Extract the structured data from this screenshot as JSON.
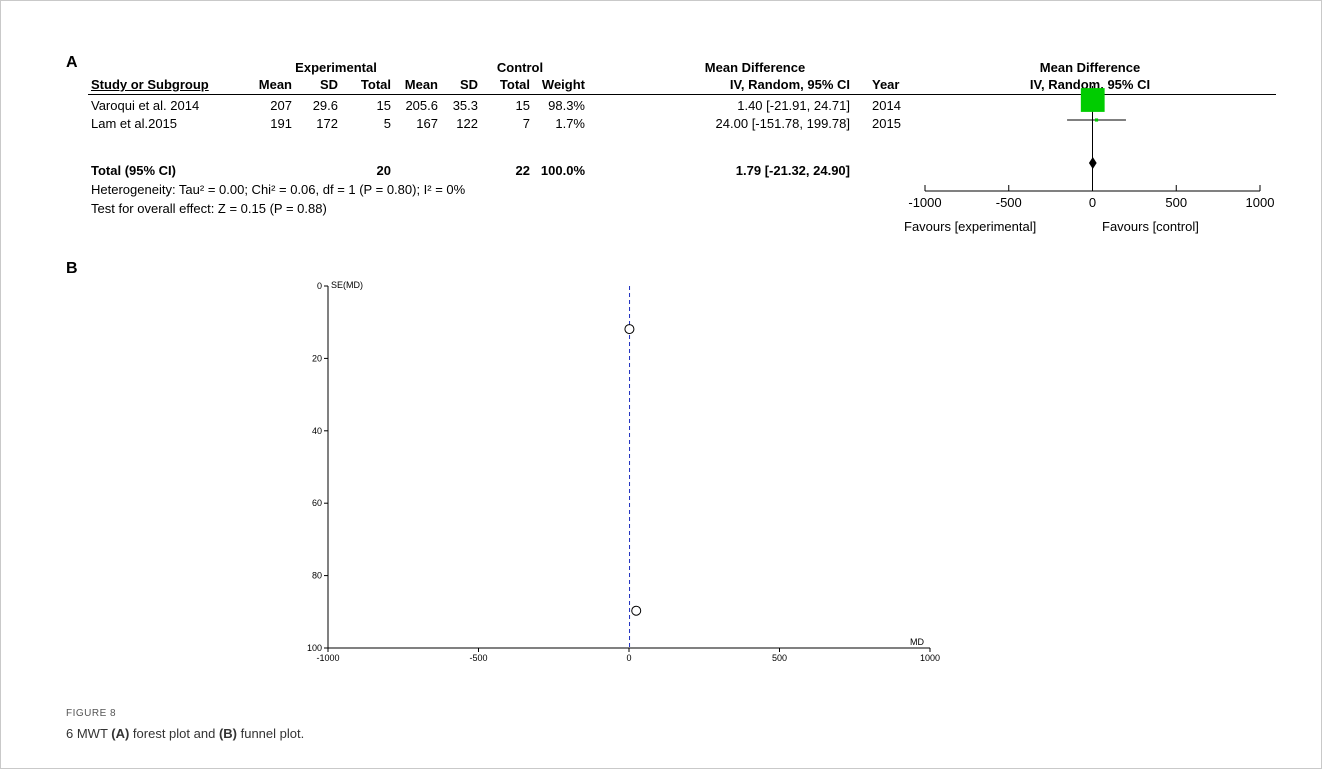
{
  "panel_a": {
    "letter": "A",
    "group_headers": {
      "experimental": "Experimental",
      "control": "Control",
      "md_left": "Mean Difference",
      "md_right": "Mean Difference"
    },
    "columns": {
      "study": "Study or Subgroup",
      "mean1": "Mean",
      "sd1": "SD",
      "total1": "Total",
      "mean2": "Mean",
      "sd2": "SD",
      "total2": "Total",
      "weight": "Weight",
      "ci": "IV, Random, 95% CI",
      "year": "Year",
      "ci_right": "IV, Random, 95% CI"
    },
    "rows": [
      {
        "study": "Varoqui et al. 2014",
        "mean1": "207",
        "sd1": "29.6",
        "total1": "15",
        "mean2": "205.6",
        "sd2": "35.3",
        "total2": "15",
        "weight": "98.3%",
        "ci": "1.40 [-21.91, 24.71]",
        "year": "2014"
      },
      {
        "study": "Lam et al.2015",
        "mean1": "191",
        "sd1": "172",
        "total1": "5",
        "mean2": "167",
        "sd2": "122",
        "total2": "7",
        "weight": "1.7%",
        "ci": "24.00 [-151.78, 199.78]",
        "year": "2015"
      }
    ],
    "total_row": {
      "label": "Total (95% CI)",
      "total1": "20",
      "total2": "22",
      "weight": "100.0%",
      "ci": "1.79 [-21.32, 24.90]"
    },
    "heterogeneity": "Heterogeneity: Tau² = 0.00; Chi² = 0.06, df = 1 (P = 0.80); I² = 0%",
    "overall_effect": "Test for overall effect: Z = 0.15 (P = 0.88)",
    "favours_left": "Favours [experimental]",
    "favours_right": "Favours [control]"
  },
  "panel_b": {
    "letter": "B"
  },
  "caption": {
    "label": "FIGURE 8",
    "text_prefix": "6 MWT ",
    "a_marker": "(A)",
    "text_middle": " forest plot and ",
    "b_marker": "(B)",
    "text_suffix": " funnel plot."
  },
  "chart_data": [
    {
      "type": "forest",
      "xlim": [
        -1000,
        1000
      ],
      "xticks": [
        -1000,
        -500,
        0,
        500,
        1000
      ],
      "tick_labels": [
        "-1000",
        "-500",
        "0",
        "500",
        "1000"
      ],
      "studies": [
        {
          "name": "Varoqui et al. 2014",
          "estimate": 1.4,
          "ci_low": -21.91,
          "ci_high": 24.71,
          "weight": 98.3
        },
        {
          "name": "Lam et al.2015",
          "estimate": 24.0,
          "ci_low": -151.78,
          "ci_high": 199.78,
          "weight": 1.7
        }
      ],
      "pooled": {
        "estimate": 1.79,
        "ci_low": -21.32,
        "ci_high": 24.9
      },
      "colors": {
        "box": "#00cc00",
        "line": "#000000"
      }
    },
    {
      "type": "scatter",
      "xlabel": "MD",
      "ylabel": "SE(MD)",
      "xlim": [
        -1000,
        1000
      ],
      "ylim": [
        0,
        100
      ],
      "y_inverted": true,
      "xticks": [
        -1000,
        -500,
        0,
        500,
        1000
      ],
      "x_tick_labels": [
        "-1000",
        "-500",
        "0",
        "500",
        "1000"
      ],
      "yticks": [
        0,
        20,
        40,
        60,
        80,
        100
      ],
      "y_tick_labels": [
        "0",
        "20",
        "40",
        "60",
        "80",
        "100"
      ],
      "points": [
        {
          "x": 1.4,
          "y": 11.9
        },
        {
          "x": 24.0,
          "y": 89.7
        }
      ],
      "reference_line_x": 1.79,
      "colors": {
        "reference_line": "#1f2fbf",
        "points": "#000000"
      }
    }
  ]
}
